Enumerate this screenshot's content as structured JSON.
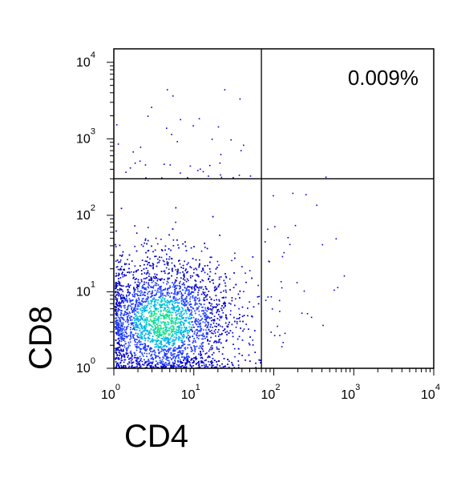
{
  "chart_data": {
    "type": "scatter",
    "title": "",
    "xlabel": "CD4",
    "ylabel": "CD8",
    "x_scale": "log",
    "y_scale": "log",
    "xlim": [
      1,
      10000
    ],
    "ylim": [
      1,
      15000
    ],
    "x_ticks": [
      {
        "base": "10",
        "exp": "0"
      },
      {
        "base": "10",
        "exp": "1"
      },
      {
        "base": "10",
        "exp": "2"
      },
      {
        "base": "10",
        "exp": "3"
      },
      {
        "base": "10",
        "exp": "4"
      }
    ],
    "y_ticks": [
      {
        "base": "10",
        "exp": "0"
      },
      {
        "base": "10",
        "exp": "1"
      },
      {
        "base": "10",
        "exp": "2"
      },
      {
        "base": "10",
        "exp": "3"
      },
      {
        "base": "10",
        "exp": "4"
      }
    ],
    "gates": {
      "x": 70,
      "y": 300
    },
    "annotations": [
      {
        "text": "0.009%",
        "quadrant": "upper-right"
      }
    ],
    "density_colors": [
      "#0000cd",
      "#1e3cff",
      "#00a0ff",
      "#00d2c8",
      "#28e678"
    ],
    "population": {
      "main_cluster_center": [
        4,
        4
      ],
      "main_cluster_spread_log10": [
        0.45,
        0.42
      ],
      "main_cluster_count": 5200,
      "sparse_upper_left_count": 45,
      "sparse_right_count": 40,
      "upper_right_count": 1
    }
  }
}
